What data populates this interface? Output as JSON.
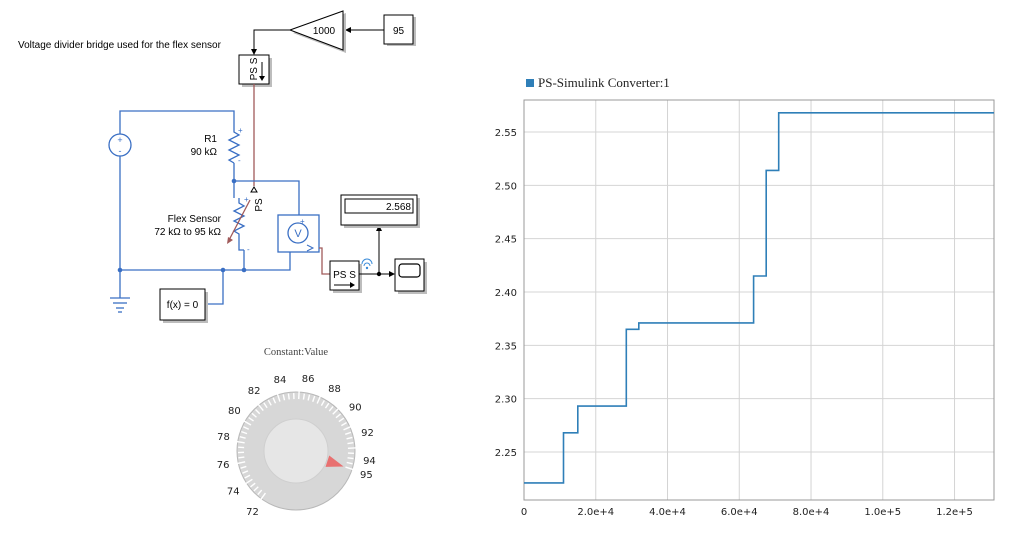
{
  "diagram": {
    "title": "Voltage divider bridge used for the flex sensor",
    "gain_value": "1000",
    "constant_value": "95",
    "ps_s_label": "PS S",
    "ps_label": "PS",
    "r1_name": "R1",
    "r1_value": "90 kΩ",
    "flex_name": "Flex Sensor",
    "flex_range": "72 kΩ to 95 kΩ",
    "solver_label": "f(x) = 0",
    "display_value": "2.568",
    "voltmeter_symbol": "V",
    "plus": "+",
    "minus": "-"
  },
  "knob": {
    "title": "Constant:Value",
    "labels": [
      "72",
      "74",
      "76",
      "78",
      "80",
      "82",
      "84",
      "86",
      "88",
      "90",
      "92",
      "94",
      "95"
    ],
    "value": 95,
    "min": 72,
    "max": 95
  },
  "chart_data": {
    "type": "line",
    "title": "PS-Simulink Converter:1",
    "series": [
      {
        "name": "PS-Simulink Converter:1",
        "color": "#2f7fb8",
        "x": [
          0,
          11000,
          11000,
          15000,
          15000,
          28500,
          28500,
          32000,
          32000,
          64000,
          64000,
          67500,
          67500,
          71000,
          71000,
          131000
        ],
        "y": [
          2.221,
          2.221,
          2.268,
          2.268,
          2.293,
          2.293,
          2.365,
          2.365,
          2.371,
          2.371,
          2.415,
          2.415,
          2.514,
          2.514,
          2.568,
          2.568
        ]
      }
    ],
    "xlim": [
      0,
      131000
    ],
    "ylim": [
      2.205,
      2.58
    ],
    "xticks": [
      "0",
      "2.0e+4",
      "4.0e+4",
      "6.0e+4",
      "8.0e+4",
      "1.0e+5",
      "1.2e+5"
    ],
    "xtick_values": [
      0,
      20000,
      40000,
      60000,
      80000,
      100000,
      120000
    ],
    "yticks": [
      "2.25",
      "2.30",
      "2.35",
      "2.40",
      "2.45",
      "2.50",
      "2.55"
    ],
    "ytick_values": [
      2.25,
      2.3,
      2.35,
      2.4,
      2.45,
      2.5,
      2.55
    ],
    "grid": true,
    "legend_placement": "top-left"
  }
}
